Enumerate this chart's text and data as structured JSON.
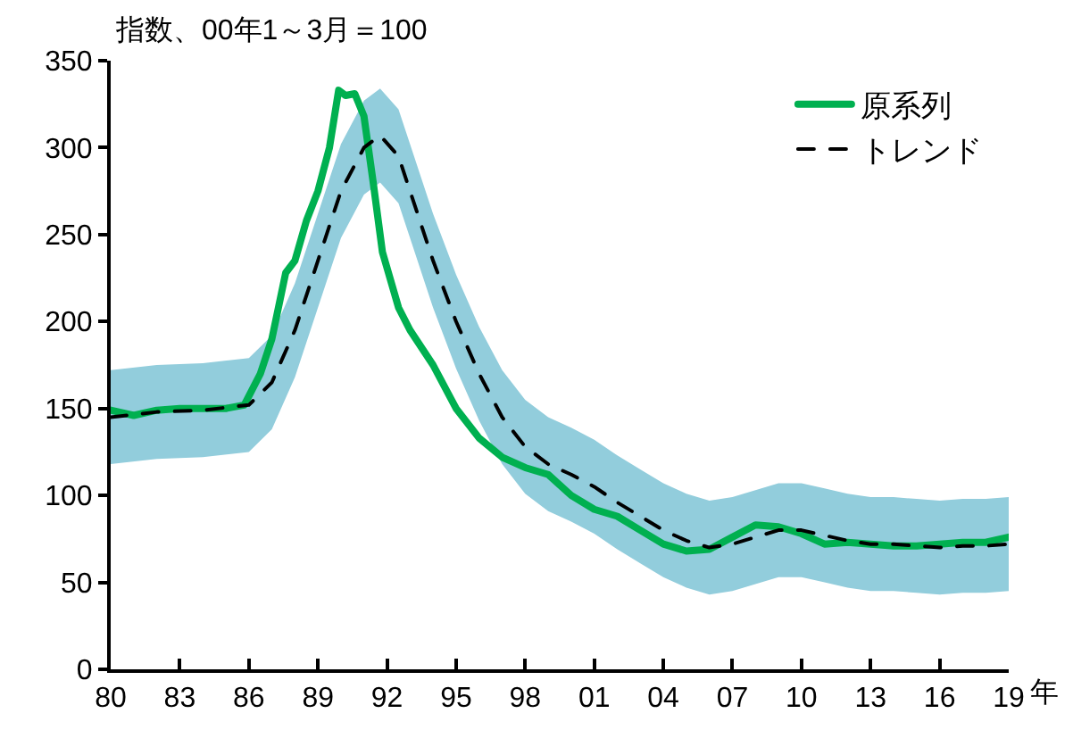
{
  "chart_data": {
    "type": "line",
    "ylabel": "指数、00年1～3月＝100",
    "xlabel": "年",
    "xlim": [
      1980,
      2019
    ],
    "xticks": [
      {
        "value": 1980,
        "label": "80"
      },
      {
        "value": 1983,
        "label": "83"
      },
      {
        "value": 1986,
        "label": "86"
      },
      {
        "value": 1989,
        "label": "89"
      },
      {
        "value": 1992,
        "label": "92"
      },
      {
        "value": 1995,
        "label": "95"
      },
      {
        "value": 1998,
        "label": "98"
      },
      {
        "value": 2001,
        "label": "01"
      },
      {
        "value": 2004,
        "label": "04"
      },
      {
        "value": 2007,
        "label": "07"
      },
      {
        "value": 2010,
        "label": "10"
      },
      {
        "value": 2013,
        "label": "13"
      },
      {
        "value": 2016,
        "label": "16"
      },
      {
        "value": 2019,
        "label": "19"
      }
    ],
    "ylim": [
      0,
      350
    ],
    "yticks": [
      0,
      50,
      100,
      150,
      200,
      250,
      300,
      350
    ],
    "grid": false,
    "legend": "top right",
    "series": [
      {
        "name": "原系列",
        "color": "#00b050",
        "line_style": "solid",
        "x": [
          1980,
          1981,
          1982,
          1983,
          1984,
          1985,
          1985.8,
          1986.5,
          1987,
          1987.6,
          1988,
          1988.5,
          1989,
          1989.5,
          1989.9,
          1990.2,
          1990.6,
          1991,
          1991.4,
          1991.8,
          1992.5,
          1993,
          1994,
          1995,
          1996,
          1997,
          1998,
          1999,
          2000,
          2001,
          2002,
          2003,
          2004,
          2005,
          2006,
          2007,
          2008,
          2009,
          2010,
          2011,
          2012,
          2013,
          2014,
          2015,
          2016,
          2017,
          2018,
          2019
        ],
        "values": [
          149,
          146,
          149,
          150,
          150,
          150,
          152,
          170,
          190,
          228,
          235,
          258,
          275,
          300,
          333,
          330,
          331,
          318,
          280,
          240,
          208,
          195,
          175,
          150,
          133,
          122,
          116,
          112,
          100,
          92,
          88,
          80,
          72,
          68,
          69,
          76,
          83,
          82,
          78,
          72,
          73,
          72,
          71,
          71,
          72,
          73,
          73,
          76
        ]
      },
      {
        "name": "トレンド",
        "color": "#000000",
        "line_style": "dashed",
        "x": [
          1980,
          1982,
          1984,
          1986,
          1987,
          1988,
          1989,
          1990,
          1991,
          1991.7,
          1992.5,
          1993,
          1994,
          1995,
          1996,
          1997,
          1998,
          1999,
          2000,
          2001,
          2002,
          2003,
          2004,
          2005,
          2006,
          2007,
          2008,
          2009,
          2010,
          2011,
          2012,
          2013,
          2014,
          2015,
          2016,
          2017,
          2018,
          2019
        ],
        "values": [
          145,
          148,
          149,
          152,
          165,
          195,
          235,
          275,
          300,
          307,
          295,
          275,
          235,
          200,
          170,
          145,
          128,
          118,
          112,
          105,
          96,
          88,
          80,
          74,
          70,
          72,
          76,
          80,
          80,
          77,
          74,
          72,
          72,
          71,
          70,
          71,
          71,
          72
        ],
        "lower": [
          118,
          121,
          122,
          125,
          138,
          168,
          208,
          248,
          273,
          280,
          268,
          248,
          208,
          173,
          143,
          118,
          101,
          91,
          85,
          78,
          69,
          61,
          53,
          47,
          43,
          45,
          49,
          53,
          53,
          50,
          47,
          45,
          45,
          44,
          43,
          44,
          44,
          45
        ],
        "upper": [
          172,
          175,
          176,
          179,
          192,
          222,
          262,
          302,
          327,
          334,
          322,
          302,
          262,
          227,
          197,
          172,
          155,
          145,
          139,
          132,
          123,
          115,
          107,
          101,
          97,
          99,
          103,
          107,
          107,
          104,
          101,
          99,
          99,
          98,
          97,
          98,
          98,
          99
        ]
      }
    ]
  }
}
